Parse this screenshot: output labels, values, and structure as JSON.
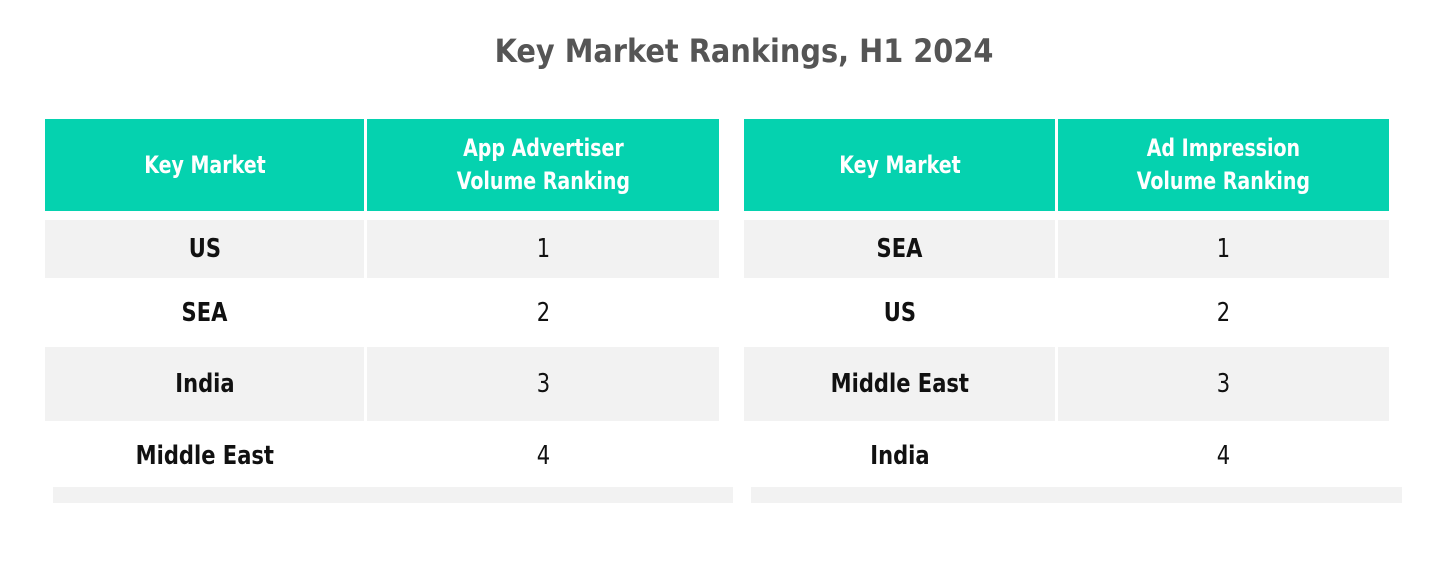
{
  "title": "Key Market Rankings, H1 2024",
  "colors": {
    "header_bg": "#05d2af",
    "row_alt_bg": "#f2f2f2",
    "title": "#555555"
  },
  "tables": [
    {
      "headers": [
        "Key Market",
        "App Advertiser\nVolume Ranking"
      ],
      "rows": [
        {
          "market": "US",
          "rank": "1"
        },
        {
          "market": "SEA",
          "rank": "2"
        },
        {
          "market": "India",
          "rank": "3"
        },
        {
          "market": "Middle East",
          "rank": "4"
        }
      ]
    },
    {
      "headers": [
        "Key Market",
        "Ad Impression\nVolume Ranking"
      ],
      "rows": [
        {
          "market": "SEA",
          "rank": "1"
        },
        {
          "market": "US",
          "rank": "2"
        },
        {
          "market": "Middle East",
          "rank": "3"
        },
        {
          "market": "India",
          "rank": "4"
        }
      ]
    }
  ]
}
